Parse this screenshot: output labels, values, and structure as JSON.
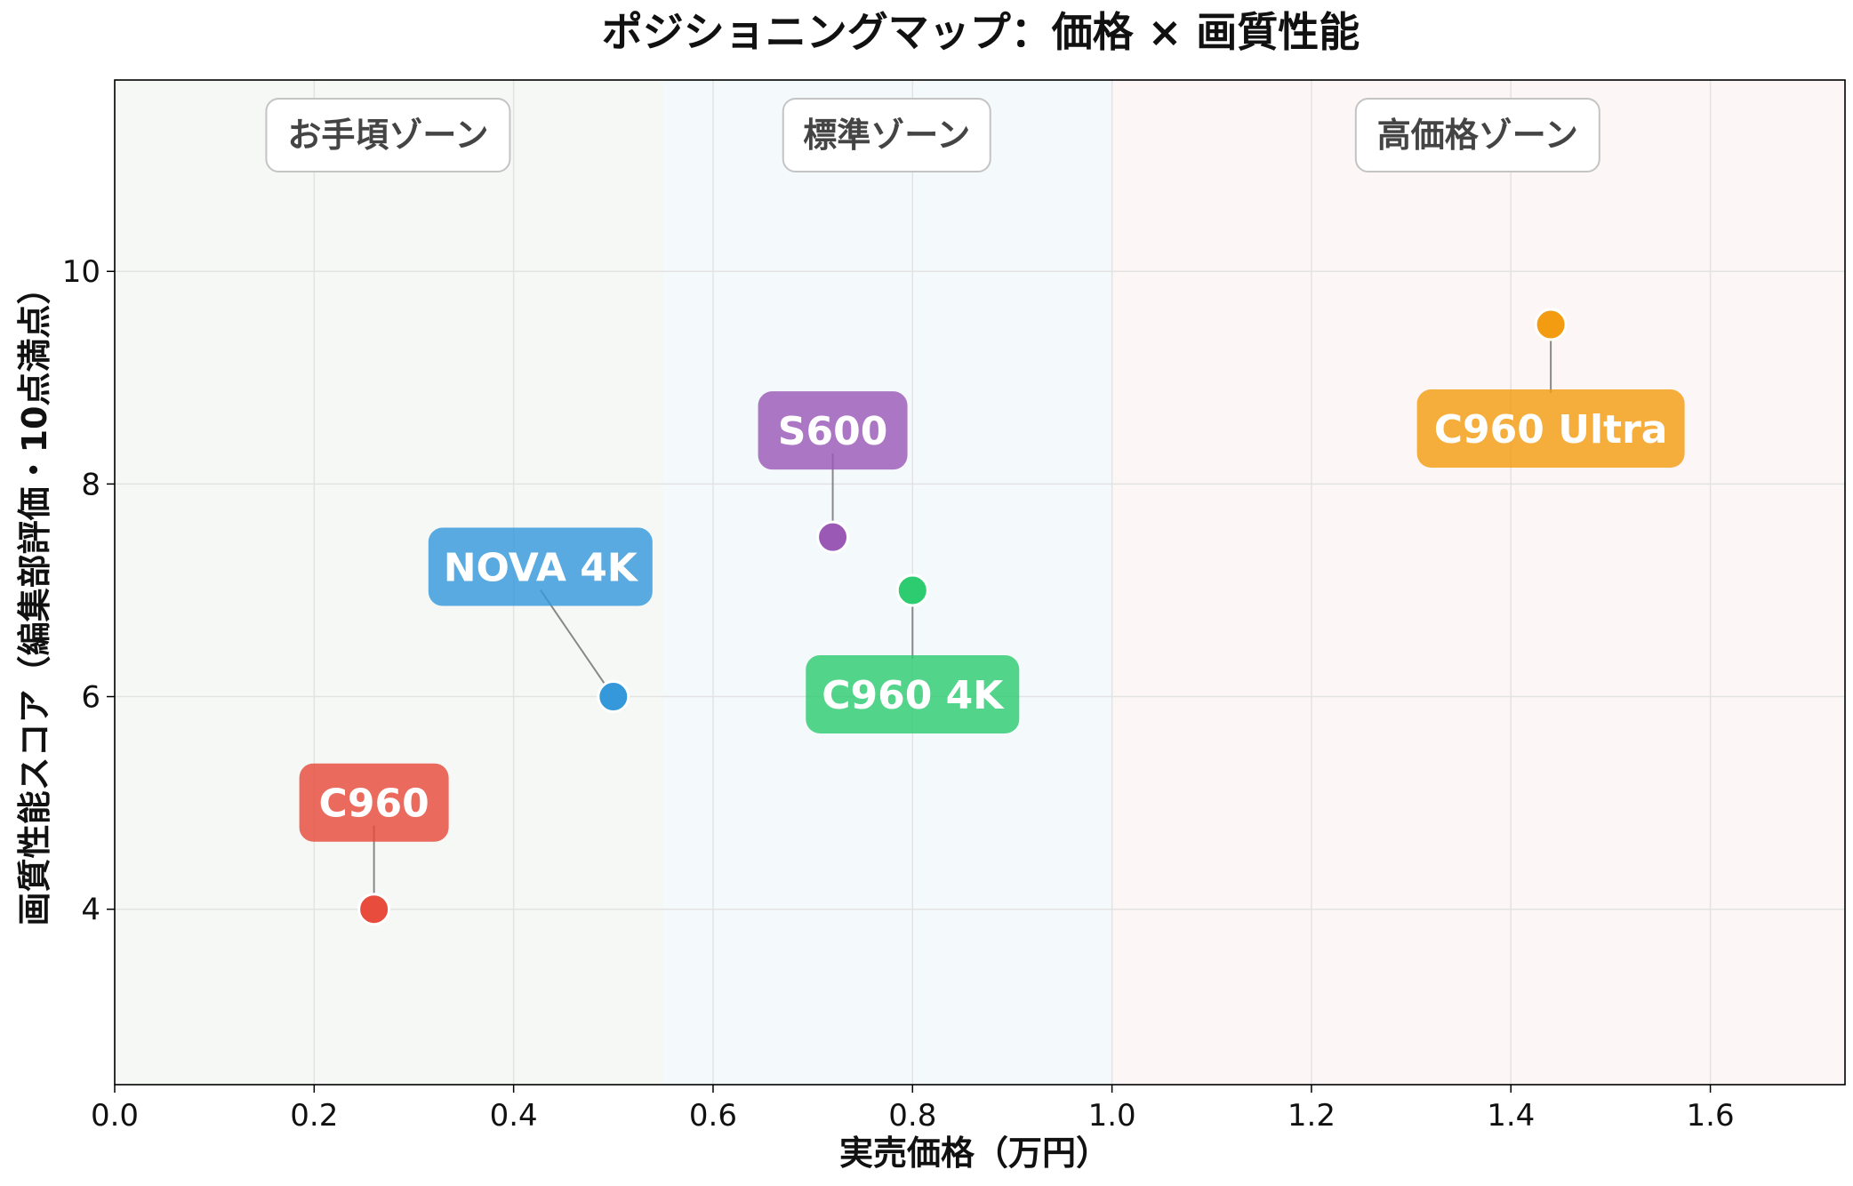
{
  "chart_data": {
    "type": "scatter",
    "title": "ポジショニングマップ：価格 × 画質性能",
    "xlabel": "実売価格（万円）",
    "ylabel": "画質性能スコア（編集部評価・10点満点）",
    "xlim": [
      0.0,
      1.735
    ],
    "ylim": [
      2.35,
      11.8
    ],
    "xticks": [
      "0.0",
      "0.2",
      "0.4",
      "0.6",
      "0.8",
      "1.0",
      "1.2",
      "1.4",
      "1.6"
    ],
    "yticks": [
      "4",
      "6",
      "8",
      "10"
    ],
    "grid": true,
    "zones": [
      {
        "label": "お手頃ゾーン",
        "x_start": 0.0,
        "x_end": 0.55,
        "color": "#f6f8f6"
      },
      {
        "label": "標準ゾーン",
        "x_start": 0.55,
        "x_end": 1.0,
        "color": "#f4f9fc"
      },
      {
        "label": "高価格ゾーン",
        "x_start": 1.0,
        "x_end": 1.735,
        "color": "#fcf6f6"
      }
    ],
    "points": [
      {
        "label": "C960",
        "x": 0.26,
        "y": 4.0,
        "color": "#e74c3c",
        "label_position": "above"
      },
      {
        "label": "NOVA 4K",
        "x": 0.5,
        "y": 6.0,
        "color": "#3498db",
        "label_position": "upper-left"
      },
      {
        "label": "S600",
        "x": 0.72,
        "y": 7.5,
        "color": "#9b59b6",
        "label_position": "above"
      },
      {
        "label": "C960 4K",
        "x": 0.8,
        "y": 7.0,
        "color": "#2ecc71",
        "label_position": "below"
      },
      {
        "label": "C960 Ultra",
        "x": 1.44,
        "y": 9.5,
        "color": "#f39c12",
        "label_position": "below"
      }
    ]
  }
}
